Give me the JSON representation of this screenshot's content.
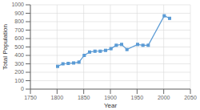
{
  "chart_data": {
    "type": "line",
    "x": [
      1801,
      1811,
      1821,
      1831,
      1841,
      1851,
      1861,
      1871,
      1881,
      1891,
      1901,
      1911,
      1921,
      1931,
      1951,
      1961,
      1971,
      2001,
      2011
    ],
    "values": [
      270,
      300,
      305,
      310,
      320,
      400,
      440,
      450,
      450,
      460,
      480,
      520,
      530,
      470,
      530,
      520,
      520,
      870,
      840
    ],
    "color": "#5b9bd5",
    "marker": "square",
    "xlabel": "Year",
    "ylabel": "Total Population",
    "xlim": [
      1750,
      2050
    ],
    "ylim": [
      0,
      1000
    ],
    "xticks": [
      1750,
      1800,
      1850,
      1900,
      1950,
      2000,
      2050
    ],
    "yticks": [
      0,
      100,
      200,
      300,
      400,
      500,
      600,
      700,
      800,
      900,
      1000
    ],
    "grid": true
  }
}
